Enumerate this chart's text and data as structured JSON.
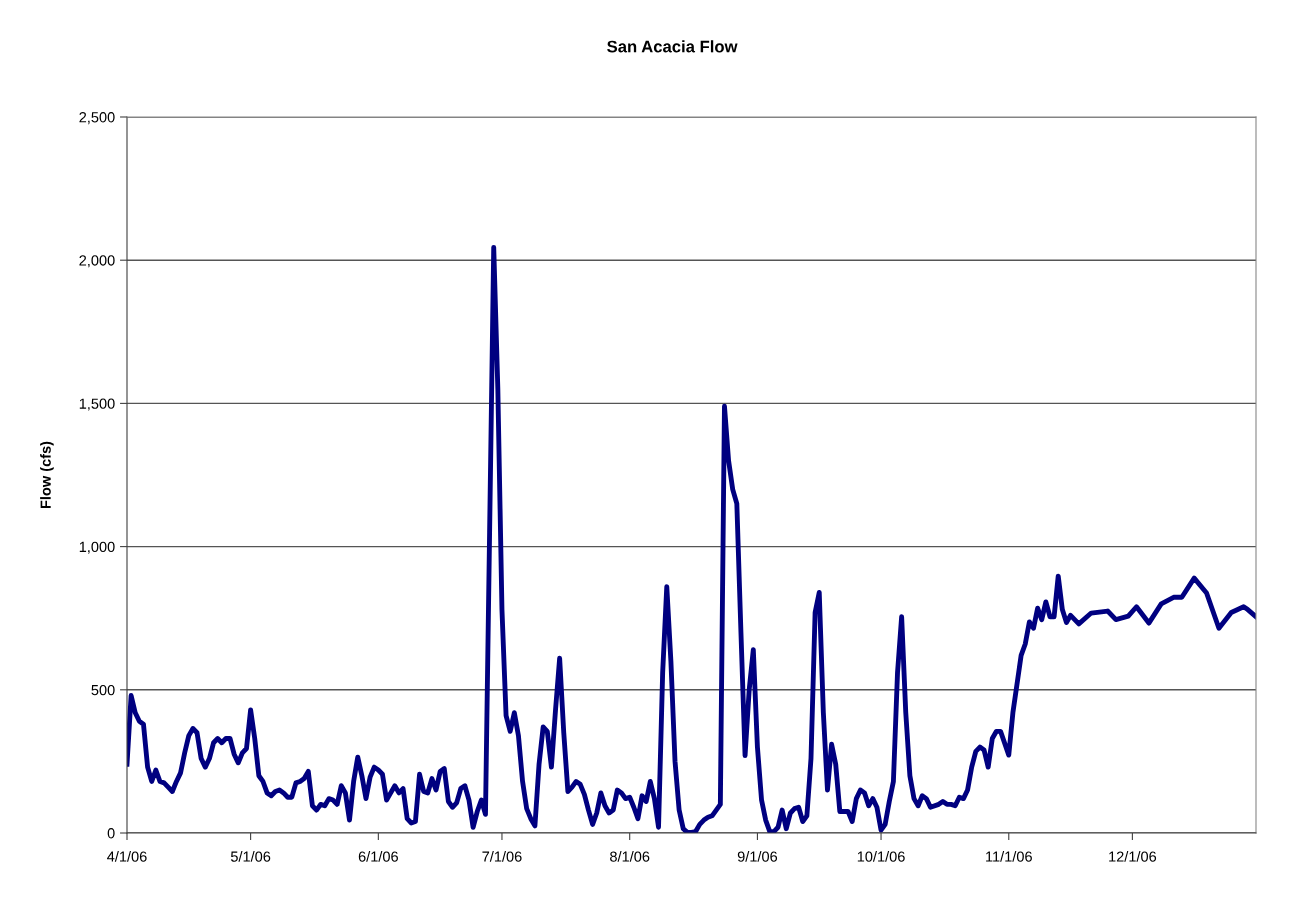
{
  "chart_data": {
    "type": "line",
    "title": "San Acacia Flow",
    "ylabel": "Flow (cfs)",
    "x": [
      "2006-04-01",
      "2006-04-02",
      "2006-04-03",
      "2006-04-04",
      "2006-04-05",
      "2006-04-06",
      "2006-04-07",
      "2006-04-08",
      "2006-04-09",
      "2006-04-10",
      "2006-04-11",
      "2006-04-12",
      "2006-04-13",
      "2006-04-14",
      "2006-04-15",
      "2006-04-16",
      "2006-04-17",
      "2006-04-18",
      "2006-04-19",
      "2006-04-20",
      "2006-04-21",
      "2006-04-22",
      "2006-04-23",
      "2006-04-24",
      "2006-04-25",
      "2006-04-26",
      "2006-04-27",
      "2006-04-28",
      "2006-04-29",
      "2006-04-30",
      "2006-05-01",
      "2006-05-02",
      "2006-05-03",
      "2006-05-04",
      "2006-05-05",
      "2006-05-06",
      "2006-05-07",
      "2006-05-08",
      "2006-05-09",
      "2006-05-10",
      "2006-05-11",
      "2006-05-12",
      "2006-05-13",
      "2006-05-14",
      "2006-05-15",
      "2006-05-16",
      "2006-05-17",
      "2006-05-18",
      "2006-05-19",
      "2006-05-20",
      "2006-05-21",
      "2006-05-22",
      "2006-05-23",
      "2006-05-24",
      "2006-05-25",
      "2006-05-26",
      "2006-05-27",
      "2006-05-28",
      "2006-05-29",
      "2006-05-30",
      "2006-05-31",
      "2006-06-01",
      "2006-06-02",
      "2006-06-03",
      "2006-06-04",
      "2006-06-05",
      "2006-06-06",
      "2006-06-07",
      "2006-06-08",
      "2006-06-09",
      "2006-06-10",
      "2006-06-11",
      "2006-06-12",
      "2006-06-13",
      "2006-06-14",
      "2006-06-15",
      "2006-06-16",
      "2006-06-17",
      "2006-06-18",
      "2006-06-19",
      "2006-06-20",
      "2006-06-21",
      "2006-06-22",
      "2006-06-23",
      "2006-06-24",
      "2006-06-25",
      "2006-06-26",
      "2006-06-27",
      "2006-06-28",
      "2006-06-29",
      "2006-06-30",
      "2006-07-01",
      "2006-07-02",
      "2006-07-03",
      "2006-07-04",
      "2006-07-05",
      "2006-07-06",
      "2006-07-07",
      "2006-07-08",
      "2006-07-09",
      "2006-07-10",
      "2006-07-11",
      "2006-07-12",
      "2006-07-13",
      "2006-07-14",
      "2006-07-15",
      "2006-07-16",
      "2006-07-17",
      "2006-07-18",
      "2006-07-19",
      "2006-07-20",
      "2006-07-21",
      "2006-07-22",
      "2006-07-23",
      "2006-07-24",
      "2006-07-25",
      "2006-07-26",
      "2006-07-27",
      "2006-07-28",
      "2006-07-29",
      "2006-07-30",
      "2006-07-31",
      "2006-08-01",
      "2006-08-02",
      "2006-08-03",
      "2006-08-04",
      "2006-08-05",
      "2006-08-06",
      "2006-08-07",
      "2006-08-08",
      "2006-08-09",
      "2006-08-10",
      "2006-08-11",
      "2006-08-12",
      "2006-08-13",
      "2006-08-14",
      "2006-08-15",
      "2006-08-16",
      "2006-08-17",
      "2006-08-18",
      "2006-08-19",
      "2006-08-20",
      "2006-08-21",
      "2006-08-22",
      "2006-08-23",
      "2006-08-24",
      "2006-08-25",
      "2006-08-26",
      "2006-08-27",
      "2006-08-28",
      "2006-08-29",
      "2006-08-30",
      "2006-08-31",
      "2006-09-01",
      "2006-09-02",
      "2006-09-03",
      "2006-09-04",
      "2006-09-05",
      "2006-09-06",
      "2006-09-07",
      "2006-09-08",
      "2006-09-09",
      "2006-09-10",
      "2006-09-11",
      "2006-09-12",
      "2006-09-13",
      "2006-09-14",
      "2006-09-15",
      "2006-09-16",
      "2006-09-17",
      "2006-09-18",
      "2006-09-19",
      "2006-09-20",
      "2006-09-21",
      "2006-09-22",
      "2006-09-23",
      "2006-09-24",
      "2006-09-25",
      "2006-09-26",
      "2006-09-27",
      "2006-09-28",
      "2006-09-29",
      "2006-09-30",
      "2006-10-01",
      "2006-10-02",
      "2006-10-03",
      "2006-10-04",
      "2006-10-05",
      "2006-10-06",
      "2006-10-07",
      "2006-10-08",
      "2006-10-09",
      "2006-10-10",
      "2006-10-11",
      "2006-10-12",
      "2006-10-13",
      "2006-10-15",
      "2006-10-16",
      "2006-10-17",
      "2006-10-18",
      "2006-10-19",
      "2006-10-20",
      "2006-10-21",
      "2006-10-22",
      "2006-10-23",
      "2006-10-24",
      "2006-10-25",
      "2006-10-26",
      "2006-10-27",
      "2006-10-28",
      "2006-10-29",
      "2006-10-30",
      "2006-11-01",
      "2006-11-02",
      "2006-11-04",
      "2006-11-05",
      "2006-11-06",
      "2006-11-07",
      "2006-11-08",
      "2006-11-09",
      "2006-11-10",
      "2006-11-11",
      "2006-11-12",
      "2006-11-13",
      "2006-11-14",
      "2006-11-15",
      "2006-11-16",
      "2006-11-18",
      "2006-11-21",
      "2006-11-25",
      "2006-11-27",
      "2006-11-30",
      "2006-12-02",
      "2006-12-05",
      "2006-12-08",
      "2006-12-11",
      "2006-12-13",
      "2006-12-16",
      "2006-12-19",
      "2006-12-22",
      "2006-12-25",
      "2006-12-28",
      "2006-12-29",
      "2006-12-31"
    ],
    "series": [
      {
        "color": "#000080",
        "values": [
          240,
          480,
          420,
          390,
          380,
          230,
          180,
          220,
          180,
          175,
          160,
          145,
          180,
          210,
          280,
          340,
          365,
          350,
          260,
          230,
          260,
          315,
          330,
          315,
          330,
          330,
          275,
          245,
          280,
          295,
          430,
          330,
          200,
          180,
          140,
          130,
          145,
          150,
          140,
          125,
          125,
          175,
          180,
          190,
          215,
          95,
          80,
          100,
          95,
          120,
          115,
          100,
          165,
          140,
          45,
          180,
          265,
          200,
          120,
          195,
          230,
          220,
          205,
          115,
          140,
          165,
          140,
          155,
          50,
          35,
          40,
          205,
          145,
          140,
          190,
          150,
          215,
          225,
          110,
          90,
          105,
          155,
          165,
          115,
          20,
          75,
          115,
          65,
          1050,
          2045,
          1550,
          780,
          410,
          355,
          420,
          340,
          180,
          85,
          50,
          25,
          240,
          370,
          355,
          230,
          430,
          610,
          350,
          145,
          160,
          180,
          170,
          135,
          80,
          30,
          70,
          140,
          95,
          70,
          80,
          150,
          140,
          120,
          125,
          90,
          50,
          130,
          110,
          180,
          120,
          20,
          560,
          860,
          600,
          250,
          80,
          15,
          2,
          2,
          5,
          30,
          45,
          55,
          60,
          80,
          100,
          1490,
          1300,
          1200,
          1150,
          700,
          270,
          500,
          640,
          300,
          115,
          45,
          5,
          5,
          20,
          80,
          15,
          70,
          85,
          90,
          40,
          60,
          260,
          770,
          840,
          420,
          150,
          310,
          240,
          75,
          75,
          75,
          40,
          120,
          150,
          140,
          95,
          120,
          90,
          10,
          30,
          110,
          180,
          560,
          755,
          420,
          200,
          120,
          95,
          130,
          120,
          90,
          100,
          110,
          100,
          100,
          95,
          125,
          120,
          150,
          230,
          285,
          300,
          290,
          230,
          330,
          355,
          355,
          272,
          420,
          620,
          660,
          737,
          715,
          785,
          745,
          807,
          755,
          755,
          897,
          780,
          735,
          760,
          730,
          768,
          775,
          745,
          757,
          790,
          733,
          800,
          823,
          823,
          890,
          838,
          715,
          770,
          790,
          780,
          755
        ]
      }
    ],
    "xlim": [
      "2006-04-01",
      "2006-12-31"
    ],
    "xticks": [
      {
        "value": "2006-04-01",
        "label": "4/1/06"
      },
      {
        "value": "2006-05-01",
        "label": "5/1/06"
      },
      {
        "value": "2006-06-01",
        "label": "6/1/06"
      },
      {
        "value": "2006-07-01",
        "label": "7/1/06"
      },
      {
        "value": "2006-08-01",
        "label": "8/1/06"
      },
      {
        "value": "2006-09-01",
        "label": "9/1/06"
      },
      {
        "value": "2006-10-01",
        "label": "10/1/06"
      },
      {
        "value": "2006-11-01",
        "label": "11/1/06"
      },
      {
        "value": "2006-12-01",
        "label": "12/1/06"
      }
    ],
    "ylim": [
      0,
      2500
    ],
    "yticks": [
      0,
      {
        "value": 500,
        "label": "500"
      },
      {
        "value": 1000,
        "label": "1,000"
      },
      {
        "value": 1500,
        "label": "1,500"
      },
      {
        "value": 2000,
        "label": "2,000"
      },
      {
        "value": 2500,
        "label": "2,500"
      }
    ],
    "grid": "y",
    "marker": "none",
    "line_style": "solid"
  }
}
